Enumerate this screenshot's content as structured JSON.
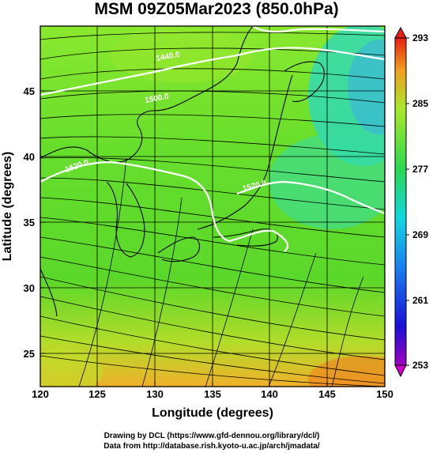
{
  "title": "MSM 09Z05Mar2023 (850.0hPa)",
  "x_axis": {
    "label": "Longitude (degrees)",
    "ticks": [
      "120",
      "125",
      "130",
      "135",
      "140",
      "145",
      "150"
    ]
  },
  "y_axis": {
    "label": "Latitude  (degrees)",
    "ticks": [
      "25",
      "30",
      "35",
      "40",
      "45"
    ]
  },
  "colorbar": {
    "ticks": [
      "293",
      "285",
      "277",
      "269",
      "261",
      "253"
    ]
  },
  "contours": {
    "labels": [
      "1440.0",
      "1500.0",
      "1520.0",
      "1520.0"
    ]
  },
  "credits": {
    "line1": "Drawing by DCL (https://www.gfd-dennou.org/library/dcl/)",
    "line2": "Data from http://database.rish.kyoto-u.ac.jp/arch/jmadata/"
  },
  "colors": {
    "warm": "#f4a82a",
    "mid": "#54dc2a",
    "cool": "#2ad8b4",
    "cold": "#3aaee8",
    "contour": "#ffffff",
    "coast": "#000000"
  }
}
